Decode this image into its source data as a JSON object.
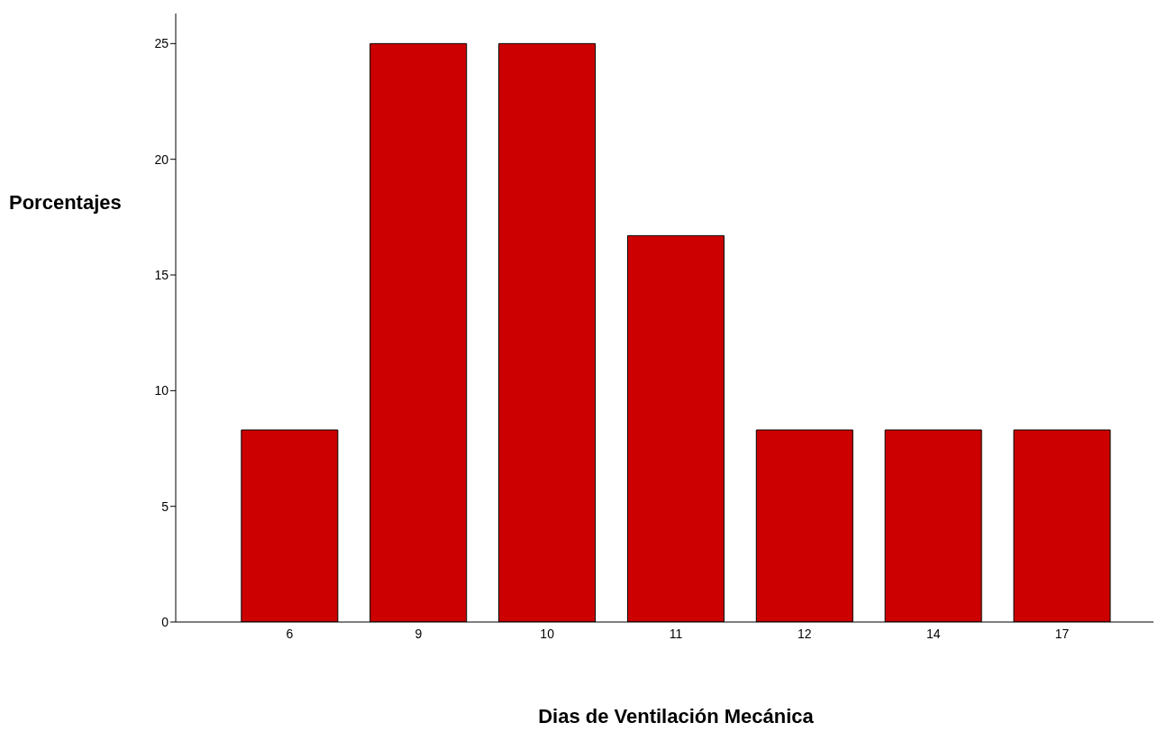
{
  "chart_data": {
    "type": "bar",
    "xlabel": "Dias de Ventilación Mecánica",
    "ylabel": "Porcentajes",
    "categories": [
      "6",
      "9",
      "10",
      "11",
      "12",
      "14",
      "17"
    ],
    "values": [
      8.3,
      25,
      25,
      16.7,
      8.3,
      8.3,
      8.3
    ],
    "color": "#cc0000",
    "ylim": [
      0,
      26.3
    ],
    "yticks": [
      0,
      5,
      10,
      15,
      20,
      25
    ],
    "grid": false,
    "legend": false
  }
}
